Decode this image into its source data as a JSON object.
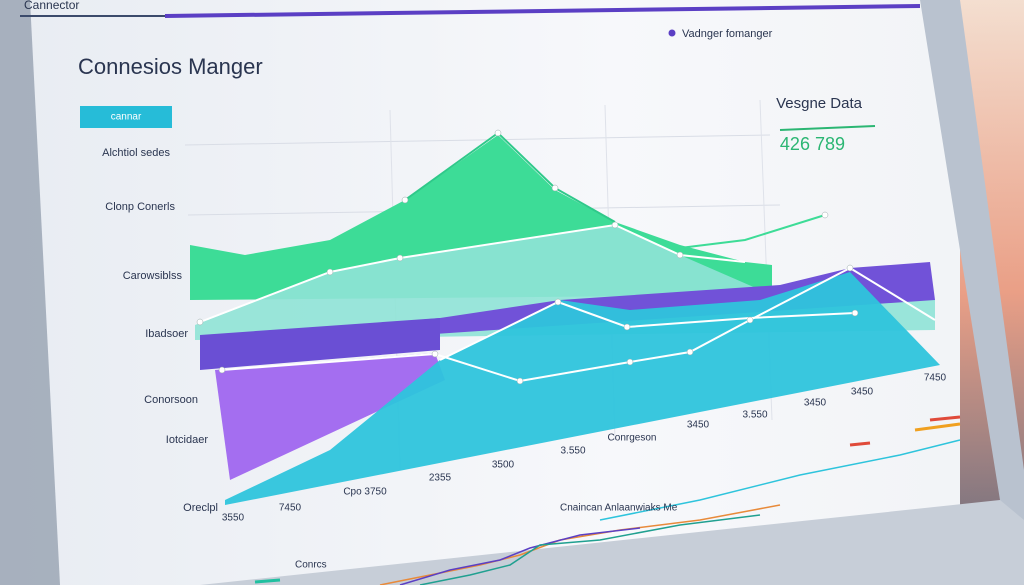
{
  "header": {
    "tab": "Cannector",
    "title": "Connesios Manger",
    "legend": "Vadnger fomanger"
  },
  "button": "cannar",
  "side_labels": [
    "Alchtiol sedes",
    "Clonp Conerls",
    "Carowsiblss",
    "Ibadsoer",
    "Conorsoon",
    "Iotcidaer",
    "Oreclpl"
  ],
  "panel": {
    "title": "Vesgne Data",
    "value": "426 789"
  },
  "axis_labels": [
    "3550",
    "7450",
    "Cpo 3750",
    "2355",
    "3500",
    "3.550",
    "Conrgeson",
    "3450",
    "3.550",
    "3450",
    "3450",
    "7450"
  ],
  "bottom": {
    "caption": "Cnaincan Anlaanwiaks Me",
    "label": "Conrcs"
  }
}
